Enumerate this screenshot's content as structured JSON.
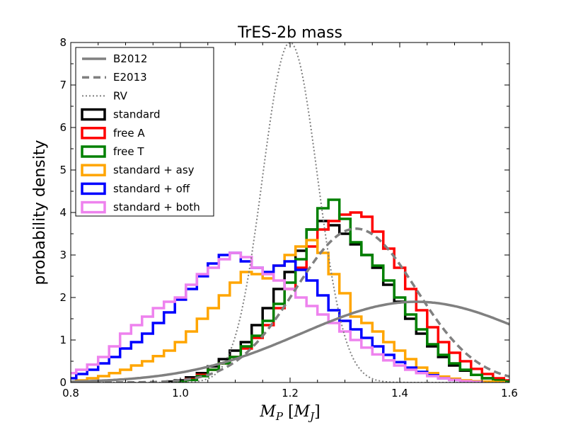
{
  "chart_data": {
    "type": "line",
    "title": "TrES-2b mass",
    "ylabel": "probability density",
    "xlabel": "M_P [M_J]",
    "xlabel_parts": [
      "M",
      "P",
      " [",
      "M",
      "J",
      "]"
    ],
    "xlim": [
      0.8,
      1.6
    ],
    "ylim": [
      0,
      8
    ],
    "xticks": [
      0.8,
      1.0,
      1.2,
      1.4,
      1.6
    ],
    "xtick_labels": [
      "0.8",
      "1.0",
      "1.2",
      "1.4",
      "1.6"
    ],
    "yticks": [
      0,
      1,
      2,
      3,
      4,
      5,
      6,
      7,
      8
    ],
    "ytick_labels": [
      "0",
      "1",
      "2",
      "3",
      "4",
      "5",
      "6",
      "7",
      "8"
    ],
    "legend_location": "upper-left",
    "curves": [
      {
        "name": "B2012",
        "kind": "gaussian",
        "mean": 1.43,
        "sigma": 0.21,
        "peak": 1.9,
        "color": "#808080",
        "style": "solid"
      },
      {
        "name": "E2013",
        "kind": "gaussian",
        "mean": 1.32,
        "sigma": 0.11,
        "peak": 3.62,
        "color": "#808080",
        "style": "dashed"
      },
      {
        "name": "RV",
        "kind": "gaussian",
        "mean": 1.2,
        "sigma": 0.05,
        "peak": 8.0,
        "color": "#808080",
        "style": "dotted"
      }
    ],
    "series": [
      {
        "name": "standard",
        "color": "#000000",
        "kind": "step",
        "x": [
          0.98,
          1.0,
          1.02,
          1.04,
          1.06,
          1.08,
          1.1,
          1.12,
          1.14,
          1.16,
          1.18,
          1.2,
          1.22,
          1.24,
          1.26,
          1.28,
          1.3,
          1.32,
          1.34,
          1.36,
          1.38,
          1.4,
          1.42,
          1.44,
          1.46,
          1.48,
          1.5,
          1.52,
          1.54,
          1.56,
          1.58,
          1.6
        ],
        "values": [
          0.02,
          0.05,
          0.12,
          0.22,
          0.38,
          0.55,
          0.75,
          0.95,
          1.35,
          1.75,
          2.2,
          2.6,
          3.1,
          3.6,
          3.8,
          3.7,
          3.5,
          3.25,
          3.0,
          2.7,
          2.3,
          1.9,
          1.5,
          1.15,
          0.85,
          0.6,
          0.4,
          0.28,
          0.18,
          0.1,
          0.05,
          0.0
        ]
      },
      {
        "name": "free A",
        "color": "#ff0000",
        "kind": "step",
        "x": [
          1.0,
          1.02,
          1.04,
          1.06,
          1.08,
          1.1,
          1.12,
          1.14,
          1.16,
          1.18,
          1.2,
          1.22,
          1.24,
          1.26,
          1.28,
          1.3,
          1.32,
          1.34,
          1.36,
          1.38,
          1.4,
          1.42,
          1.44,
          1.46,
          1.48,
          1.5,
          1.52,
          1.54,
          1.56,
          1.58,
          1.6
        ],
        "values": [
          0.02,
          0.08,
          0.18,
          0.3,
          0.45,
          0.6,
          0.8,
          1.05,
          1.35,
          1.75,
          2.2,
          2.7,
          3.2,
          3.6,
          3.8,
          3.95,
          4.0,
          3.9,
          3.55,
          3.15,
          2.7,
          2.2,
          1.7,
          1.3,
          0.95,
          0.7,
          0.5,
          0.32,
          0.2,
          0.1,
          0.05
        ]
      },
      {
        "name": "free T",
        "color": "#008000",
        "kind": "step",
        "x": [
          1.0,
          1.02,
          1.04,
          1.06,
          1.08,
          1.1,
          1.12,
          1.14,
          1.16,
          1.18,
          1.2,
          1.22,
          1.24,
          1.26,
          1.28,
          1.3,
          1.32,
          1.34,
          1.36,
          1.38,
          1.4,
          1.42,
          1.44,
          1.46,
          1.48,
          1.5,
          1.52,
          1.54,
          1.56,
          1.58,
          1.6
        ],
        "values": [
          0.02,
          0.06,
          0.15,
          0.3,
          0.45,
          0.6,
          0.85,
          1.1,
          1.45,
          1.85,
          2.35,
          2.9,
          3.6,
          4.1,
          4.3,
          3.85,
          3.3,
          3.0,
          2.75,
          2.4,
          2.0,
          1.6,
          1.25,
          0.9,
          0.65,
          0.45,
          0.3,
          0.18,
          0.1,
          0.05,
          0.02
        ]
      },
      {
        "name": "standard + asy",
        "color": "#ffa500",
        "kind": "step",
        "x": [
          0.8,
          0.82,
          0.84,
          0.86,
          0.88,
          0.9,
          0.92,
          0.94,
          0.96,
          0.98,
          1.0,
          1.02,
          1.04,
          1.06,
          1.08,
          1.1,
          1.12,
          1.14,
          1.16,
          1.18,
          1.2,
          1.22,
          1.24,
          1.26,
          1.28,
          1.3,
          1.32,
          1.34,
          1.36,
          1.38,
          1.4,
          1.42,
          1.44,
          1.46,
          1.48,
          1.5,
          1.52,
          1.54,
          1.56,
          1.58
        ],
        "values": [
          0.02,
          0.05,
          0.1,
          0.15,
          0.22,
          0.3,
          0.4,
          0.5,
          0.62,
          0.75,
          0.95,
          1.2,
          1.5,
          1.75,
          2.05,
          2.35,
          2.6,
          2.55,
          2.45,
          2.75,
          3.0,
          3.2,
          3.35,
          3.05,
          2.55,
          2.1,
          1.55,
          1.4,
          1.2,
          0.95,
          0.75,
          0.55,
          0.35,
          0.22,
          0.14,
          0.09,
          0.05,
          0.03,
          0.02,
          0.01
        ]
      },
      {
        "name": "standard + off",
        "color": "#0000ff",
        "kind": "step",
        "x": [
          0.8,
          0.82,
          0.84,
          0.86,
          0.88,
          0.9,
          0.92,
          0.94,
          0.96,
          0.98,
          1.0,
          1.02,
          1.04,
          1.06,
          1.08,
          1.1,
          1.12,
          1.14,
          1.16,
          1.18,
          1.2,
          1.22,
          1.24,
          1.26,
          1.28,
          1.3,
          1.32,
          1.34,
          1.36,
          1.38,
          1.4,
          1.42,
          1.44,
          1.46,
          1.48,
          1.5,
          1.52,
          1.54
        ],
        "values": [
          0.1,
          0.2,
          0.3,
          0.45,
          0.6,
          0.8,
          0.95,
          1.15,
          1.4,
          1.65,
          1.95,
          2.2,
          2.5,
          2.8,
          3.0,
          3.05,
          2.85,
          2.7,
          2.6,
          2.75,
          2.85,
          2.65,
          2.4,
          2.05,
          1.7,
          1.45,
          1.25,
          1.05,
          0.85,
          0.65,
          0.48,
          0.35,
          0.25,
          0.17,
          0.1,
          0.06,
          0.03,
          0.01
        ]
      },
      {
        "name": "standard + both",
        "color": "#ee82ee",
        "kind": "step",
        "x": [
          0.8,
          0.82,
          0.84,
          0.86,
          0.88,
          0.9,
          0.92,
          0.94,
          0.96,
          0.98,
          1.0,
          1.02,
          1.04,
          1.06,
          1.08,
          1.1,
          1.12,
          1.14,
          1.16,
          1.18,
          1.2,
          1.22,
          1.24,
          1.26,
          1.28,
          1.3,
          1.32,
          1.34,
          1.36,
          1.38,
          1.4,
          1.42,
          1.44,
          1.46,
          1.48,
          1.5,
          1.52,
          1.54
        ],
        "values": [
          0.22,
          0.3,
          0.42,
          0.6,
          0.85,
          1.15,
          1.35,
          1.55,
          1.75,
          1.9,
          2.0,
          2.3,
          2.55,
          2.7,
          2.9,
          3.05,
          2.95,
          2.7,
          2.55,
          2.4,
          2.2,
          2.0,
          1.8,
          1.6,
          1.4,
          1.2,
          1.0,
          0.82,
          0.66,
          0.52,
          0.4,
          0.3,
          0.22,
          0.15,
          0.1,
          0.06,
          0.03,
          0.01
        ]
      }
    ],
    "legend": [
      "B2012",
      "E2013",
      "RV",
      "standard",
      "free A",
      "free T",
      "standard + asy",
      "standard + off",
      "standard + both"
    ]
  }
}
